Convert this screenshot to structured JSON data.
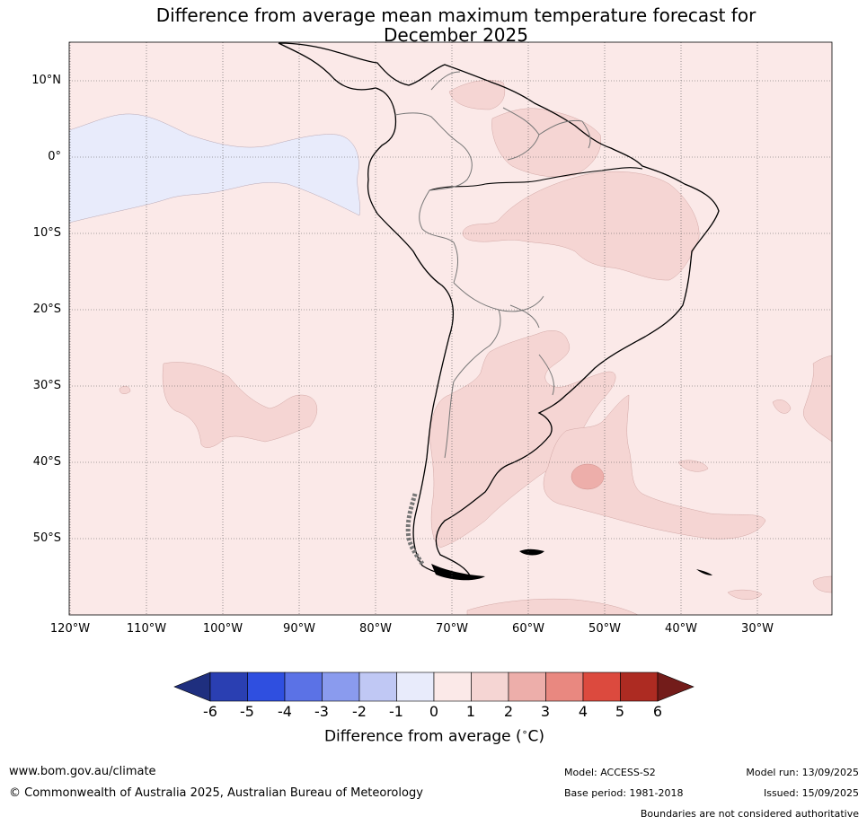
{
  "title": {
    "line1": "Difference from average mean maximum temperature forecast for",
    "line2": "December 2025"
  },
  "map": {
    "lat_labels": [
      "10°N",
      "0°",
      "10°S",
      "20°S",
      "30°S",
      "40°S",
      "50°S"
    ],
    "lon_labels": [
      "120°W",
      "110°W",
      "100°W",
      "90°W",
      "80°W",
      "70°W",
      "60°W",
      "50°W",
      "40°W",
      "30°W"
    ],
    "gridlines": "dotted",
    "base_anomaly_class": "0 to 1",
    "regions": [
      {
        "name": "eastern-pacific-cool-band",
        "anomaly_class": "-1 to 0"
      },
      {
        "name": "northern-south-america-warm",
        "anomaly_class": "1 to 2"
      },
      {
        "name": "eastern-brazil-warm",
        "anomaly_class": "1 to 2"
      },
      {
        "name": "argentina-uruguay-warm",
        "anomaly_class": "1 to 2"
      },
      {
        "name": "south-atlantic-warm",
        "anomaly_class": "1 to 2"
      },
      {
        "name": "south-atlantic-warm-core",
        "anomaly_class": "2 to 3"
      },
      {
        "name": "southeast-pacific-warm",
        "anomaly_class": "1 to 2"
      },
      {
        "name": "far-south-atlantic-warm",
        "anomaly_class": "1 to 2"
      }
    ]
  },
  "colorbar": {
    "ticks": [
      "-6",
      "-5",
      "-4",
      "-3",
      "-2",
      "-1",
      "0",
      "1",
      "2",
      "3",
      "4",
      "5",
      "6"
    ],
    "colors": [
      "#1f2f7f",
      "#2a3fb2",
      "#2f4fe0",
      "#5b72e6",
      "#8a9bee",
      "#c0c8f4",
      "#e8ebfb",
      "#fbe9e8",
      "#f5d5d3",
      "#edaeaa",
      "#e98880",
      "#dc4a3e",
      "#ad2b22",
      "#731c1a"
    ],
    "label": "Difference from average (",
    "label_unit_super": "∘",
    "label_unit": "C)"
  },
  "footer": {
    "website": "www.bom.gov.au/climate",
    "copyright": "© Commonwealth of Australia 2025, Australian Bureau of Meteorology",
    "model": "Model: ACCESS-S2",
    "base_period": "Base period: 1981-2018",
    "model_run": "Model run: 13/09/2025",
    "issued": "Issued: 15/09/2025",
    "disclaimer": "Boundaries are not considered authoritative"
  }
}
